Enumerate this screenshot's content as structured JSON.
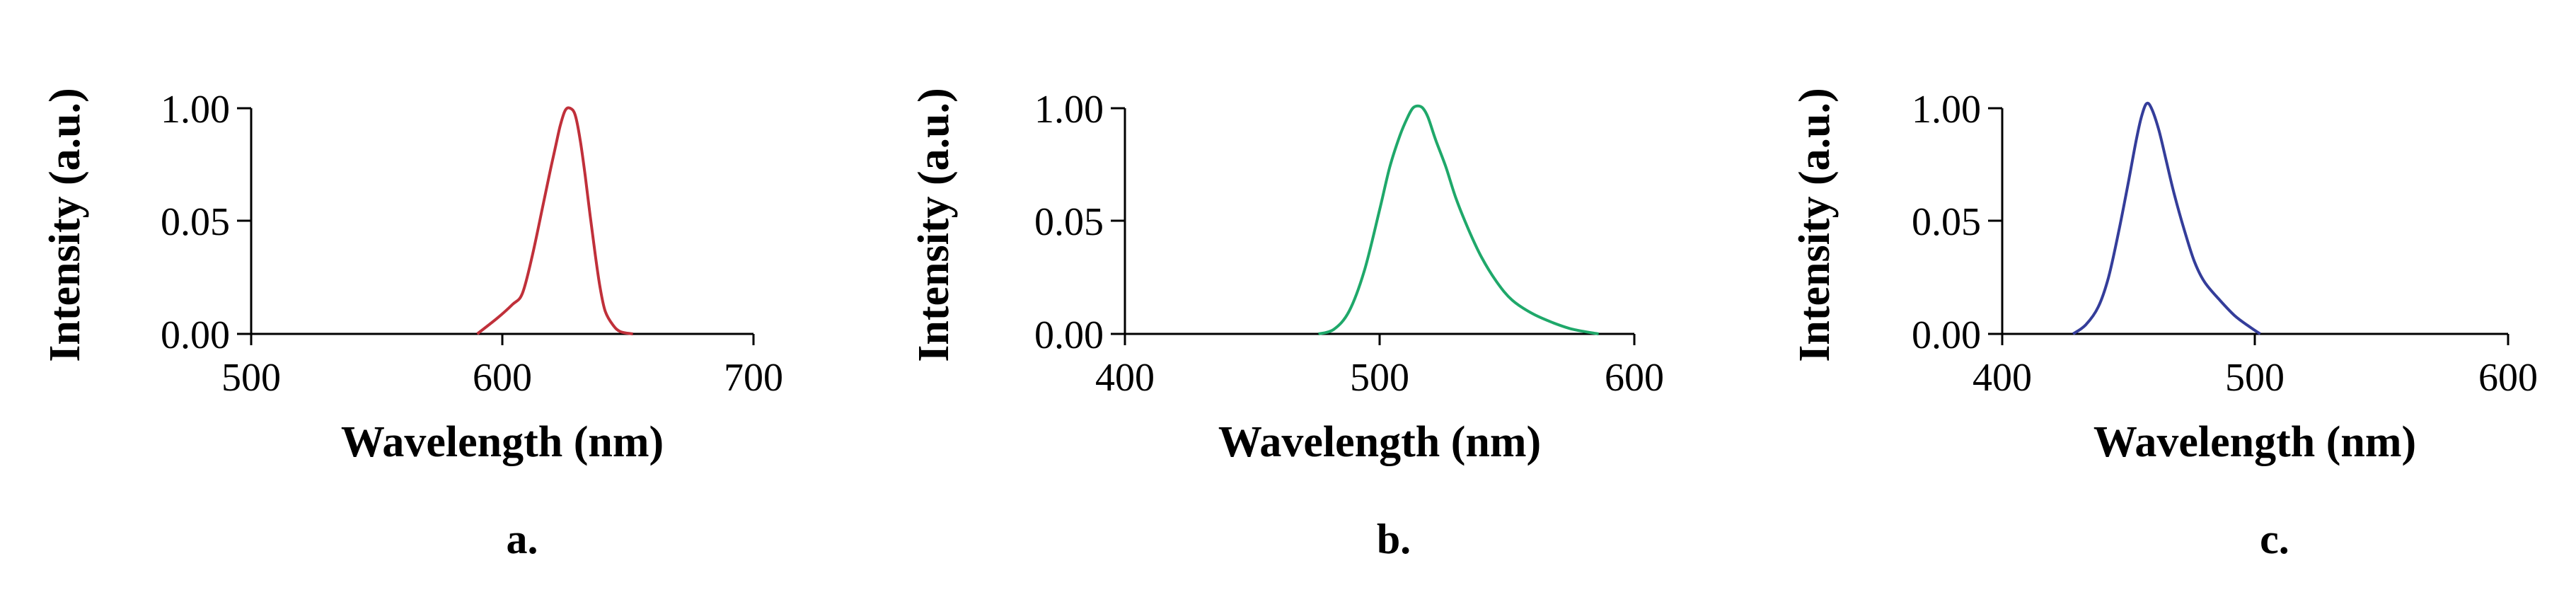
{
  "chart_data": [
    {
      "type": "line",
      "panel_label": "a.",
      "xlabel": "Wavelength (nm)",
      "ylabel": "Intensity (a.u.)",
      "xlim": [
        500,
        700
      ],
      "ylim": [
        0.0,
        1.0
      ],
      "x_ticks": [
        "500",
        "600",
        "700"
      ],
      "y_ticks": [
        "0.00",
        "0.05",
        "1.00"
      ],
      "color": "#c0303a",
      "series": [
        {
          "x": [
            590,
            598,
            604,
            608,
            612,
            616,
            619,
            621,
            623,
            625,
            627,
            629,
            631,
            633,
            635,
            637,
            639,
            641,
            644,
            647,
            652
          ],
          "values": [
            0.0,
            0.07,
            0.13,
            0.18,
            0.35,
            0.56,
            0.72,
            0.82,
            0.92,
            0.99,
            1.0,
            0.97,
            0.86,
            0.7,
            0.52,
            0.35,
            0.2,
            0.1,
            0.04,
            0.01,
            0.0
          ]
        }
      ]
    },
    {
      "type": "line",
      "panel_label": "b.",
      "xlabel": "Wavelength (nm)",
      "ylabel": "Intensity (a.u.)",
      "xlim": [
        400,
        600
      ],
      "ylim": [
        0.0,
        1.0
      ],
      "x_ticks": [
        "400",
        "500",
        "600"
      ],
      "y_ticks": [
        "0.00",
        "0.05",
        "1.00"
      ],
      "color": "#1fa86a",
      "series": [
        {
          "x": [
            476,
            482,
            488,
            494,
            500,
            504,
            508,
            511,
            513,
            515,
            517,
            519,
            522,
            526,
            530,
            535,
            540,
            546,
            552,
            560,
            568,
            576,
            586
          ],
          "values": [
            0.0,
            0.02,
            0.1,
            0.28,
            0.55,
            0.74,
            0.88,
            0.96,
            1.0,
            1.01,
            1.0,
            0.96,
            0.86,
            0.74,
            0.6,
            0.46,
            0.34,
            0.23,
            0.15,
            0.09,
            0.05,
            0.02,
            0.0
          ]
        }
      ]
    },
    {
      "type": "line",
      "panel_label": "c.",
      "xlabel": "Wavelength (nm)",
      "ylabel": "Intensity (a.u.)",
      "xlim": [
        400,
        600
      ],
      "ylim": [
        0.0,
        1.0
      ],
      "x_ticks": [
        "400",
        "500",
        "600"
      ],
      "y_ticks": [
        "0.00",
        "0.05",
        "1.00"
      ],
      "color": "#343d9a",
      "series": [
        {
          "x": [
            428,
            433,
            438,
            442,
            446,
            450,
            453,
            455,
            457,
            459,
            462,
            465,
            468,
            472,
            476,
            480,
            486,
            492,
            498,
            502
          ],
          "values": [
            0.0,
            0.04,
            0.12,
            0.25,
            0.45,
            0.68,
            0.86,
            0.96,
            1.02,
            1.0,
            0.9,
            0.76,
            0.62,
            0.46,
            0.32,
            0.23,
            0.15,
            0.08,
            0.03,
            0.0
          ]
        }
      ]
    }
  ]
}
